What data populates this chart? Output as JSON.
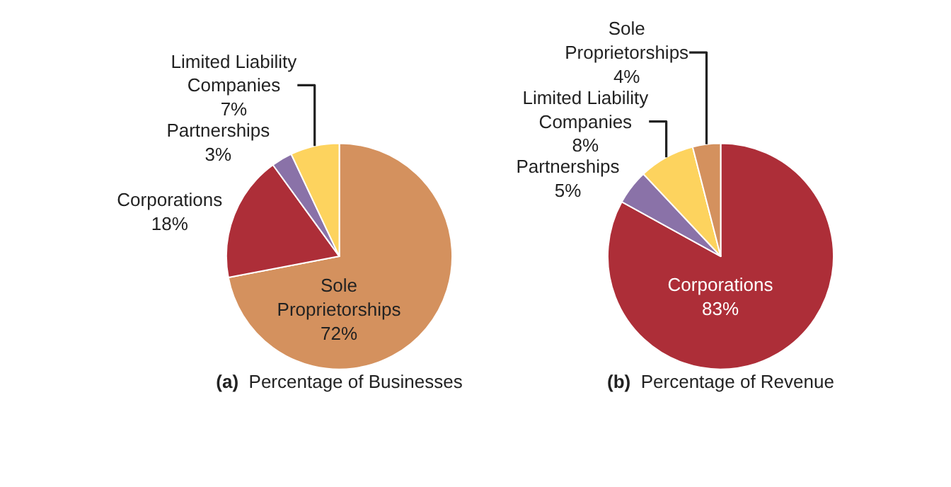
{
  "chart_data": [
    {
      "type": "pie",
      "title": "(a)  Percentage of Businesses",
      "categories": [
        "Sole Proprietorships",
        "Corporations",
        "Partnerships",
        "Limited Liability Companies"
      ],
      "values": [
        72,
        18,
        3,
        7
      ],
      "value_labels": [
        "72%",
        "18%",
        "3%",
        "7%"
      ],
      "colors": [
        "#d4915e",
        "#ad2e38",
        "#8a72a8",
        "#fdd35e"
      ]
    },
    {
      "type": "pie",
      "title": "(b)  Percentage of Revenue",
      "categories": [
        "Corporations",
        "Partnerships",
        "Limited Liability Companies",
        "Sole Proprietorships"
      ],
      "values": [
        83,
        5,
        8,
        4
      ],
      "value_labels": [
        "83%",
        "5%",
        "8%",
        "4%"
      ],
      "colors": [
        "#ad2e38",
        "#8a72a8",
        "#fdd35e",
        "#d4915e"
      ]
    }
  ]
}
